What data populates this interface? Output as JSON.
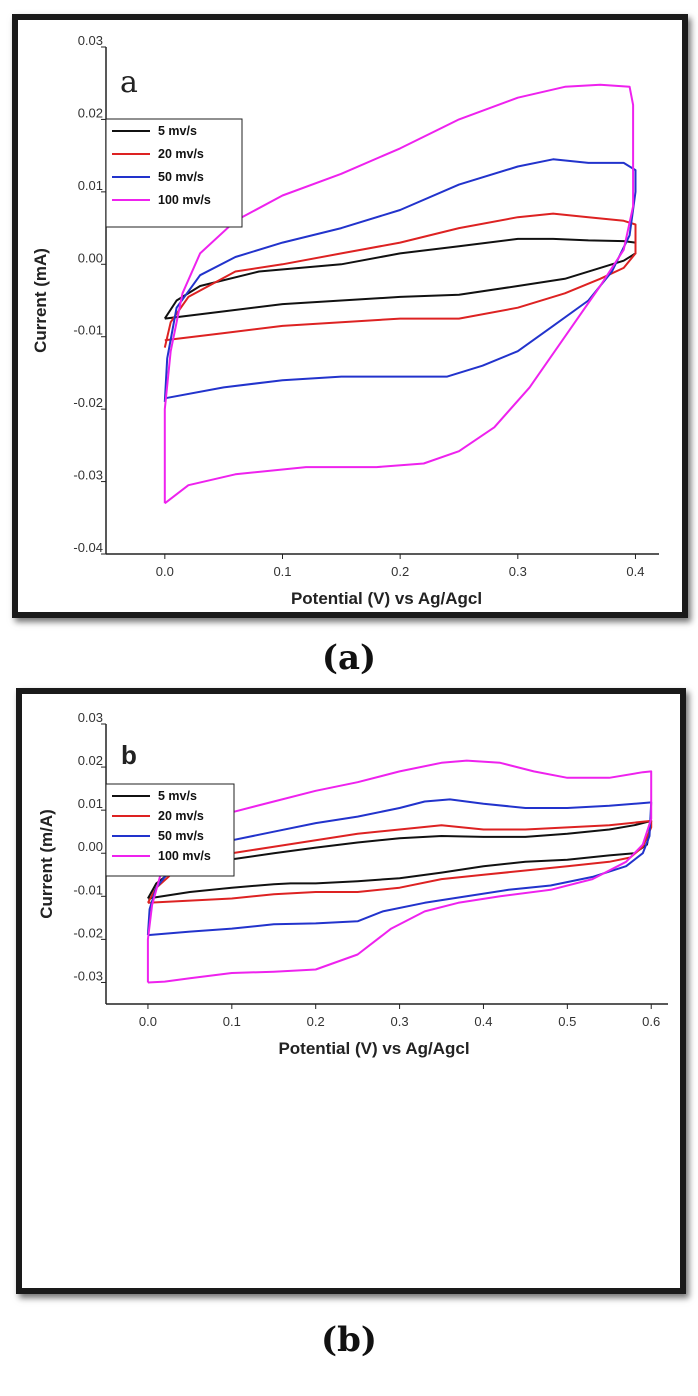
{
  "captions": {
    "a": "(a)",
    "b": "(b)"
  },
  "chart_data": [
    {
      "type": "line",
      "panel_letter": "a",
      "xlabel": "Potential (V) vs Ag/Agcl",
      "ylabel": "Current (mA)",
      "xlim": [
        -0.05,
        0.42
      ],
      "ylim": [
        -0.04,
        0.03
      ],
      "xticks": [
        0.0,
        0.1,
        0.2,
        0.3,
        0.4
      ],
      "xtick_labels": [
        "0.0",
        "0.1",
        "0.2",
        "0.3",
        "0.4"
      ],
      "yticks": [
        0.03,
        0.02,
        0.01,
        0.0,
        -0.01,
        -0.02,
        -0.03,
        -0.04
      ],
      "ytick_labels": [
        "0.03",
        "0.02",
        "0.01",
        "0.00",
        "-0.01",
        "-0.02",
        "-0.03",
        "-0.04"
      ],
      "legend_position": "top-left",
      "grid": false,
      "series": [
        {
          "name": "5 mv/s",
          "color": "#111111",
          "forward": [
            [
              0.0,
              -0.0075
            ],
            [
              0.01,
              -0.005
            ],
            [
              0.03,
              -0.003
            ],
            [
              0.08,
              -0.001
            ],
            [
              0.15,
              0.0
            ],
            [
              0.2,
              0.0015
            ],
            [
              0.25,
              0.0025
            ],
            [
              0.3,
              0.0035
            ],
            [
              0.33,
              0.0035
            ],
            [
              0.36,
              0.0033
            ],
            [
              0.39,
              0.0032
            ],
            [
              0.4,
              0.003
            ]
          ],
          "reverse": [
            [
              0.4,
              0.0015
            ],
            [
              0.39,
              0.0005
            ],
            [
              0.37,
              -0.0005
            ],
            [
              0.34,
              -0.002
            ],
            [
              0.3,
              -0.003
            ],
            [
              0.25,
              -0.0042
            ],
            [
              0.2,
              -0.0045
            ],
            [
              0.15,
              -0.005
            ],
            [
              0.1,
              -0.0055
            ],
            [
              0.05,
              -0.0065
            ],
            [
              0.0,
              -0.0075
            ]
          ]
        },
        {
          "name": "20 mv/s",
          "color": "#dd2222",
          "forward": [
            [
              0.0,
              -0.0115
            ],
            [
              0.005,
              -0.008
            ],
            [
              0.02,
              -0.0045
            ],
            [
              0.06,
              -0.001
            ],
            [
              0.1,
              0.0
            ],
            [
              0.15,
              0.0015
            ],
            [
              0.2,
              0.003
            ],
            [
              0.25,
              0.005
            ],
            [
              0.3,
              0.0065
            ],
            [
              0.33,
              0.007
            ],
            [
              0.36,
              0.0065
            ],
            [
              0.39,
              0.006
            ],
            [
              0.4,
              0.0055
            ]
          ],
          "reverse": [
            [
              0.4,
              0.0015
            ],
            [
              0.39,
              -0.0005
            ],
            [
              0.37,
              -0.002
            ],
            [
              0.34,
              -0.004
            ],
            [
              0.3,
              -0.006
            ],
            [
              0.25,
              -0.0075
            ],
            [
              0.2,
              -0.0075
            ],
            [
              0.15,
              -0.008
            ],
            [
              0.1,
              -0.0085
            ],
            [
              0.05,
              -0.0095
            ],
            [
              0.0,
              -0.0105
            ]
          ]
        },
        {
          "name": "50 mv/s",
          "color": "#2233cc",
          "forward": [
            [
              0.0,
              -0.019
            ],
            [
              0.002,
              -0.013
            ],
            [
              0.01,
              -0.006
            ],
            [
              0.03,
              -0.0015
            ],
            [
              0.06,
              0.001
            ],
            [
              0.1,
              0.003
            ],
            [
              0.15,
              0.005
            ],
            [
              0.2,
              0.0075
            ],
            [
              0.25,
              0.011
            ],
            [
              0.3,
              0.0135
            ],
            [
              0.33,
              0.0145
            ],
            [
              0.36,
              0.014
            ],
            [
              0.39,
              0.014
            ],
            [
              0.4,
              0.013
            ]
          ],
          "reverse": [
            [
              0.4,
              0.01
            ],
            [
              0.395,
              0.004
            ],
            [
              0.38,
              -0.001
            ],
            [
              0.36,
              -0.005
            ],
            [
              0.33,
              -0.0085
            ],
            [
              0.3,
              -0.012
            ],
            [
              0.27,
              -0.014
            ],
            [
              0.24,
              -0.0155
            ],
            [
              0.2,
              -0.0155
            ],
            [
              0.15,
              -0.0155
            ],
            [
              0.1,
              -0.016
            ],
            [
              0.05,
              -0.017
            ],
            [
              0.0,
              -0.0185
            ]
          ]
        },
        {
          "name": "100 mv/s",
          "color": "#ee22ee",
          "forward": [
            [
              0.0,
              -0.033
            ],
            [
              0.0,
              -0.02
            ],
            [
              0.005,
              -0.012
            ],
            [
              0.015,
              -0.004
            ],
            [
              0.03,
              0.0015
            ],
            [
              0.06,
              0.006
            ],
            [
              0.1,
              0.0095
            ],
            [
              0.15,
              0.0125
            ],
            [
              0.2,
              0.016
            ],
            [
              0.25,
              0.02
            ],
            [
              0.3,
              0.023
            ],
            [
              0.34,
              0.0245
            ],
            [
              0.37,
              0.0248
            ],
            [
              0.395,
              0.0245
            ],
            [
              0.398,
              0.022
            ],
            [
              0.398,
              0.015
            ]
          ],
          "reverse": [
            [
              0.398,
              0.015
            ],
            [
              0.398,
              0.008
            ],
            [
              0.39,
              0.002
            ],
            [
              0.37,
              -0.003
            ],
            [
              0.34,
              -0.01
            ],
            [
              0.31,
              -0.017
            ],
            [
              0.28,
              -0.0225
            ],
            [
              0.25,
              -0.0258
            ],
            [
              0.22,
              -0.0275
            ],
            [
              0.18,
              -0.028
            ],
            [
              0.12,
              -0.028
            ],
            [
              0.06,
              -0.029
            ],
            [
              0.02,
              -0.0305
            ],
            [
              0.0,
              -0.033
            ]
          ]
        }
      ]
    },
    {
      "type": "line",
      "panel_letter": "b",
      "xlabel": "Potential (V) vs Ag/Agcl",
      "ylabel": "Current (m/A)",
      "xlim": [
        -0.05,
        0.62
      ],
      "ylim": [
        -0.035,
        0.03
      ],
      "xticks": [
        0.0,
        0.1,
        0.2,
        0.3,
        0.4,
        0.5,
        0.6
      ],
      "xtick_labels": [
        "0.0",
        "0.1",
        "0.2",
        "0.3",
        "0.4",
        "0.5",
        "0.6"
      ],
      "yticks": [
        0.03,
        0.02,
        0.01,
        0.0,
        -0.01,
        -0.02,
        -0.03
      ],
      "ytick_labels": [
        "0.03",
        "0.02",
        "0.01",
        "0.00",
        "-0.01",
        "-0.02",
        "-0.03"
      ],
      "legend_position": "top-left",
      "grid": false,
      "series": [
        {
          "name": "5 mv/s",
          "color": "#111111",
          "forward": [
            [
              0.0,
              -0.0105
            ],
            [
              0.01,
              -0.007
            ],
            [
              0.03,
              -0.004
            ],
            [
              0.08,
              -0.002
            ],
            [
              0.15,
              0.0
            ],
            [
              0.2,
              0.0013
            ],
            [
              0.25,
              0.0025
            ],
            [
              0.3,
              0.0035
            ],
            [
              0.35,
              0.004
            ],
            [
              0.4,
              0.0038
            ],
            [
              0.45,
              0.0038
            ],
            [
              0.5,
              0.0045
            ],
            [
              0.55,
              0.0055
            ],
            [
              0.58,
              0.0065
            ],
            [
              0.6,
              0.0075
            ]
          ],
          "reverse": [
            [
              0.6,
              0.0075
            ],
            [
              0.595,
              0.002
            ],
            [
              0.58,
              0.0
            ],
            [
              0.55,
              -0.0005
            ],
            [
              0.5,
              -0.0015
            ],
            [
              0.45,
              -0.002
            ],
            [
              0.4,
              -0.003
            ],
            [
              0.35,
              -0.0045
            ],
            [
              0.3,
              -0.0058
            ],
            [
              0.25,
              -0.0065
            ],
            [
              0.2,
              -0.007
            ],
            [
              0.17,
              -0.007
            ],
            [
              0.15,
              -0.0072
            ],
            [
              0.1,
              -0.008
            ],
            [
              0.05,
              -0.009
            ],
            [
              0.0,
              -0.0105
            ]
          ]
        },
        {
          "name": "20 mv/s",
          "color": "#dd2222",
          "forward": [
            [
              0.0,
              -0.0115
            ],
            [
              0.01,
              -0.008
            ],
            [
              0.03,
              -0.0045
            ],
            [
              0.06,
              -0.002
            ],
            [
              0.1,
              0.0
            ],
            [
              0.15,
              0.0015
            ],
            [
              0.2,
              0.003
            ],
            [
              0.25,
              0.0045
            ],
            [
              0.3,
              0.0055
            ],
            [
              0.35,
              0.0065
            ],
            [
              0.4,
              0.0055
            ],
            [
              0.45,
              0.0055
            ],
            [
              0.5,
              0.006
            ],
            [
              0.55,
              0.0065
            ],
            [
              0.6,
              0.0075
            ]
          ],
          "reverse": [
            [
              0.6,
              0.006
            ],
            [
              0.59,
              0.0015
            ],
            [
              0.575,
              -0.001
            ],
            [
              0.55,
              -0.002
            ],
            [
              0.5,
              -0.003
            ],
            [
              0.45,
              -0.004
            ],
            [
              0.4,
              -0.005
            ],
            [
              0.35,
              -0.006
            ],
            [
              0.3,
              -0.008
            ],
            [
              0.25,
              -0.009
            ],
            [
              0.2,
              -0.009
            ],
            [
              0.15,
              -0.0095
            ],
            [
              0.1,
              -0.0105
            ],
            [
              0.05,
              -0.011
            ],
            [
              0.0,
              -0.0115
            ]
          ]
        },
        {
          "name": "50 mv/s",
          "color": "#2233cc",
          "forward": [
            [
              0.0,
              -0.019
            ],
            [
              0.002,
              -0.013
            ],
            [
              0.01,
              -0.008
            ],
            [
              0.03,
              -0.003
            ],
            [
              0.06,
              0.0
            ],
            [
              0.1,
              0.003
            ],
            [
              0.15,
              0.005
            ],
            [
              0.2,
              0.007
            ],
            [
              0.25,
              0.0085
            ],
            [
              0.3,
              0.0105
            ],
            [
              0.33,
              0.012
            ],
            [
              0.36,
              0.0125
            ],
            [
              0.4,
              0.0115
            ],
            [
              0.45,
              0.0105
            ],
            [
              0.5,
              0.0105
            ],
            [
              0.55,
              0.011
            ],
            [
              0.6,
              0.0118
            ]
          ],
          "reverse": [
            [
              0.6,
              0.0118
            ],
            [
              0.598,
              0.004
            ],
            [
              0.59,
              0.0
            ],
            [
              0.57,
              -0.003
            ],
            [
              0.53,
              -0.0055
            ],
            [
              0.48,
              -0.0075
            ],
            [
              0.43,
              -0.0085
            ],
            [
              0.38,
              -0.01
            ],
            [
              0.33,
              -0.0115
            ],
            [
              0.28,
              -0.0135
            ],
            [
              0.25,
              -0.0158
            ],
            [
              0.2,
              -0.0163
            ],
            [
              0.15,
              -0.0165
            ],
            [
              0.1,
              -0.0175
            ],
            [
              0.05,
              -0.0182
            ],
            [
              0.0,
              -0.019
            ]
          ]
        },
        {
          "name": "100 mv/s",
          "color": "#ee22ee",
          "forward": [
            [
              0.0,
              -0.03
            ],
            [
              0.0,
              -0.02
            ],
            [
              0.005,
              -0.012
            ],
            [
              0.015,
              -0.005
            ],
            [
              0.03,
              0.0
            ],
            [
              0.06,
              0.005
            ],
            [
              0.1,
              0.0095
            ],
            [
              0.15,
              0.012
            ],
            [
              0.2,
              0.0145
            ],
            [
              0.25,
              0.0165
            ],
            [
              0.3,
              0.019
            ],
            [
              0.35,
              0.021
            ],
            [
              0.38,
              0.0215
            ],
            [
              0.42,
              0.021
            ],
            [
              0.46,
              0.019
            ],
            [
              0.5,
              0.0175
            ],
            [
              0.55,
              0.0175
            ],
            [
              0.59,
              0.0188
            ],
            [
              0.6,
              0.019
            ]
          ],
          "reverse": [
            [
              0.6,
              0.019
            ],
            [
              0.6,
              0.008
            ],
            [
              0.59,
              0.002
            ],
            [
              0.57,
              -0.002
            ],
            [
              0.53,
              -0.006
            ],
            [
              0.48,
              -0.0085
            ],
            [
              0.42,
              -0.01
            ],
            [
              0.37,
              -0.0115
            ],
            [
              0.33,
              -0.0135
            ],
            [
              0.29,
              -0.0175
            ],
            [
              0.25,
              -0.0235
            ],
            [
              0.2,
              -0.027
            ],
            [
              0.15,
              -0.0275
            ],
            [
              0.1,
              -0.0278
            ],
            [
              0.05,
              -0.029
            ],
            [
              0.02,
              -0.0298
            ],
            [
              0.0,
              -0.03
            ]
          ]
        }
      ]
    }
  ]
}
